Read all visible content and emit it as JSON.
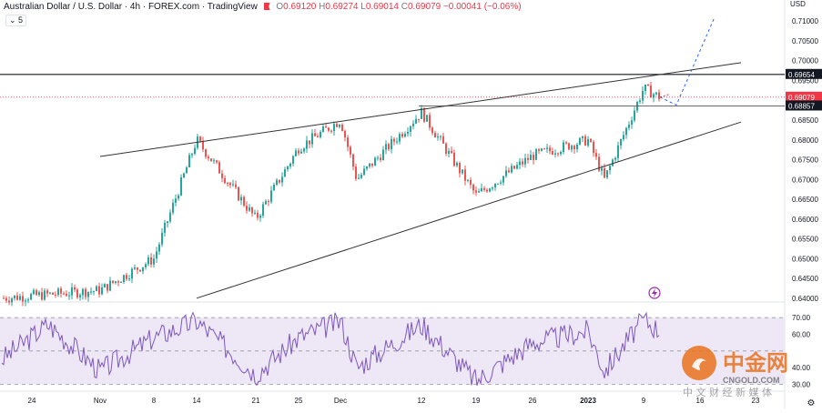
{
  "header": {
    "symbol": "Australian Dollar / U.S. Dollar · 4h · FOREX.com · TradingView",
    "open_label": "O",
    "open": "0.69120",
    "high_label": "H",
    "high": "0.69274",
    "low_label": "L",
    "low": "0.69014",
    "close_label": "C",
    "close": "0.69079",
    "change": "−0.00041 (−0.06%)",
    "collapse_indicator": "⌄ 5"
  },
  "colors": {
    "up": "#26a69a",
    "down": "#ef5350",
    "rsi_line": "#7e57c2",
    "rsi_band": "#ede7f6",
    "last_price": "#f23645",
    "axis_text": "#131722"
  },
  "chart_data": [
    {
      "type": "candlestick",
      "title": "Australian Dollar / U.S. Dollar · 4h · FOREX.com · TradingView",
      "currency_label": "USD",
      "y_ticks": [
        "0.71000",
        "0.70500",
        "0.70000",
        "0.69500",
        "0.68500",
        "0.68000",
        "0.67500",
        "0.67000",
        "0.66500",
        "0.66000",
        "0.65500",
        "0.65000",
        "0.64500",
        "0.64000"
      ],
      "ylim": [
        0.6395,
        0.7135
      ],
      "x_ticks": [
        "24",
        "Nov",
        "8",
        "14",
        "21",
        "25",
        "Dec",
        "12",
        "19",
        "26",
        "2023",
        "9",
        "16",
        "23"
      ],
      "grid": false,
      "price_labels": [
        {
          "value": 0.69654,
          "text": "0.69654",
          "style": "horizontal-line"
        },
        {
          "value": 0.69079,
          "text": "0.69079",
          "style": "last-price"
        },
        {
          "value": 0.68857,
          "text": "0.68857",
          "style": "horizontal-line"
        }
      ],
      "key_points": [
        {
          "x": "24",
          "y": 0.64
        },
        {
          "x": "Nov",
          "y": 0.642
        },
        {
          "x": "8",
          "y": 0.65
        },
        {
          "x": "14",
          "y": 0.68
        },
        {
          "x": "21",
          "y": 0.66
        },
        {
          "x": "25",
          "y": 0.678
        },
        {
          "x": "Dec",
          "y": 0.685
        },
        {
          "x": "Dec",
          "y": 0.67
        },
        {
          "x": "12",
          "y": 0.687
        },
        {
          "x": "19",
          "y": 0.666
        },
        {
          "x": "26",
          "y": 0.676
        },
        {
          "x": "2023",
          "y": 0.68
        },
        {
          "x": "2023",
          "y": 0.67
        },
        {
          "x": "9",
          "y": 0.693
        },
        {
          "x": "9",
          "y": 0.6908
        }
      ],
      "trendlines": [
        {
          "name": "upper-wedge-line",
          "from": {
            "x": "Nov",
            "y": 0.6758
          },
          "to": {
            "x": "23",
            "y": 0.6995
          }
        },
        {
          "name": "lower-wedge-line",
          "from": {
            "x": "14",
            "y": 0.64
          },
          "to": {
            "x": "23",
            "y": 0.6845
          }
        }
      ],
      "projection_path": [
        {
          "x": "9",
          "y": 0.6908
        },
        {
          "x": "9",
          "y": 0.6888
        },
        {
          "x": "16",
          "y": 0.711
        }
      ]
    },
    {
      "type": "line",
      "title": "",
      "y_ticks": [
        "70.00",
        "60.00",
        "40.00",
        "30.00"
      ],
      "ylim": [
        27,
        75
      ],
      "band": [
        30,
        70
      ],
      "guides": [
        30,
        50,
        70
      ],
      "key_points": [
        {
          "x": "24",
          "y": 45
        },
        {
          "x": "24",
          "y": 66
        },
        {
          "x": "Nov",
          "y": 38
        },
        {
          "x": "8",
          "y": 58
        },
        {
          "x": "14",
          "y": 68
        },
        {
          "x": "21",
          "y": 36
        },
        {
          "x": "25",
          "y": 58
        },
        {
          "x": "Dec",
          "y": 68
        },
        {
          "x": "Dec",
          "y": 40
        },
        {
          "x": "12",
          "y": 66
        },
        {
          "x": "19",
          "y": 32
        },
        {
          "x": "26",
          "y": 55
        },
        {
          "x": "2023",
          "y": 62
        },
        {
          "x": "2023",
          "y": 38
        },
        {
          "x": "9",
          "y": 69
        },
        {
          "x": "9",
          "y": 62
        }
      ]
    }
  ],
  "watermark": {
    "brand": "中金网",
    "domain": "CNGOLD.COM",
    "slogan": "中 文 财 经 新 媒 体"
  }
}
